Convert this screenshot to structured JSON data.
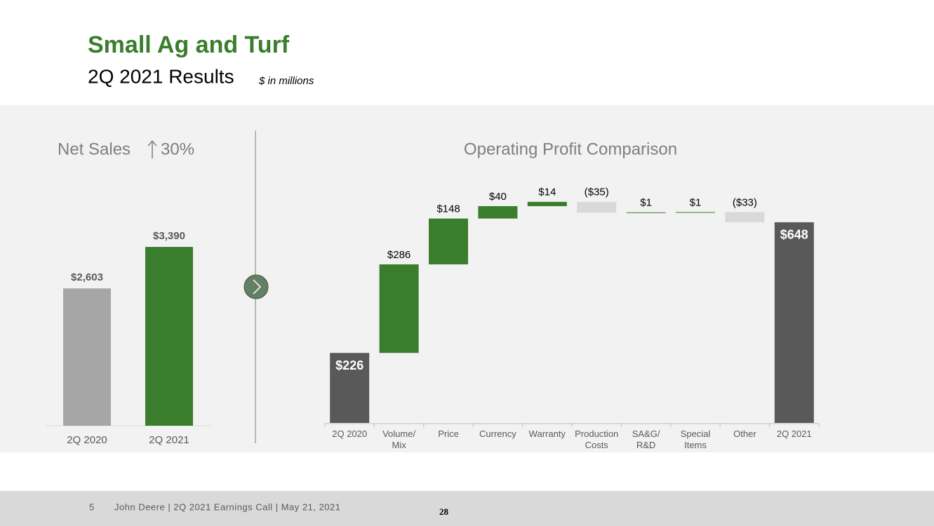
{
  "header": {
    "title": "Small Ag and Turf",
    "subtitle": "2Q 2021 Results",
    "unit": "$ in millions"
  },
  "chart_data": [
    {
      "type": "bar",
      "title": "Net Sales",
      "change": "30%",
      "categories": [
        "2Q 2020",
        "2Q 2021"
      ],
      "values": [
        2603,
        3390
      ],
      "value_labels": [
        "$2,603",
        "$3,390"
      ],
      "colors": [
        "#a6a6a6",
        "#3a7d2c"
      ]
    },
    {
      "type": "waterfall",
      "title": "Operating Profit Comparison",
      "categories": [
        "2Q 2020",
        "Volume/\nMix",
        "Price",
        "Currency",
        "Warranty",
        "Production\nCosts",
        "SA&G/\nR&D",
        "Special\nItems",
        "Other",
        "2Q 2021"
      ],
      "values": [
        226,
        286,
        148,
        40,
        14,
        -35,
        1,
        1,
        -33,
        648
      ],
      "value_labels": [
        "$226",
        "$286",
        "$148",
        "$40",
        "$14",
        "($35)",
        "$1",
        "$1",
        "($33)",
        "$648"
      ],
      "measure": [
        "total",
        "relative",
        "relative",
        "relative",
        "relative",
        "relative",
        "relative",
        "relative",
        "relative",
        "total"
      ],
      "colors": {
        "total": "#595959",
        "increase": "#3a7d2c",
        "decrease": "#d9d9d9"
      }
    }
  ],
  "footer": {
    "page": "5",
    "text": "John Deere | 2Q 2021 Earnings Call | May 21, 2021",
    "number": "28"
  }
}
